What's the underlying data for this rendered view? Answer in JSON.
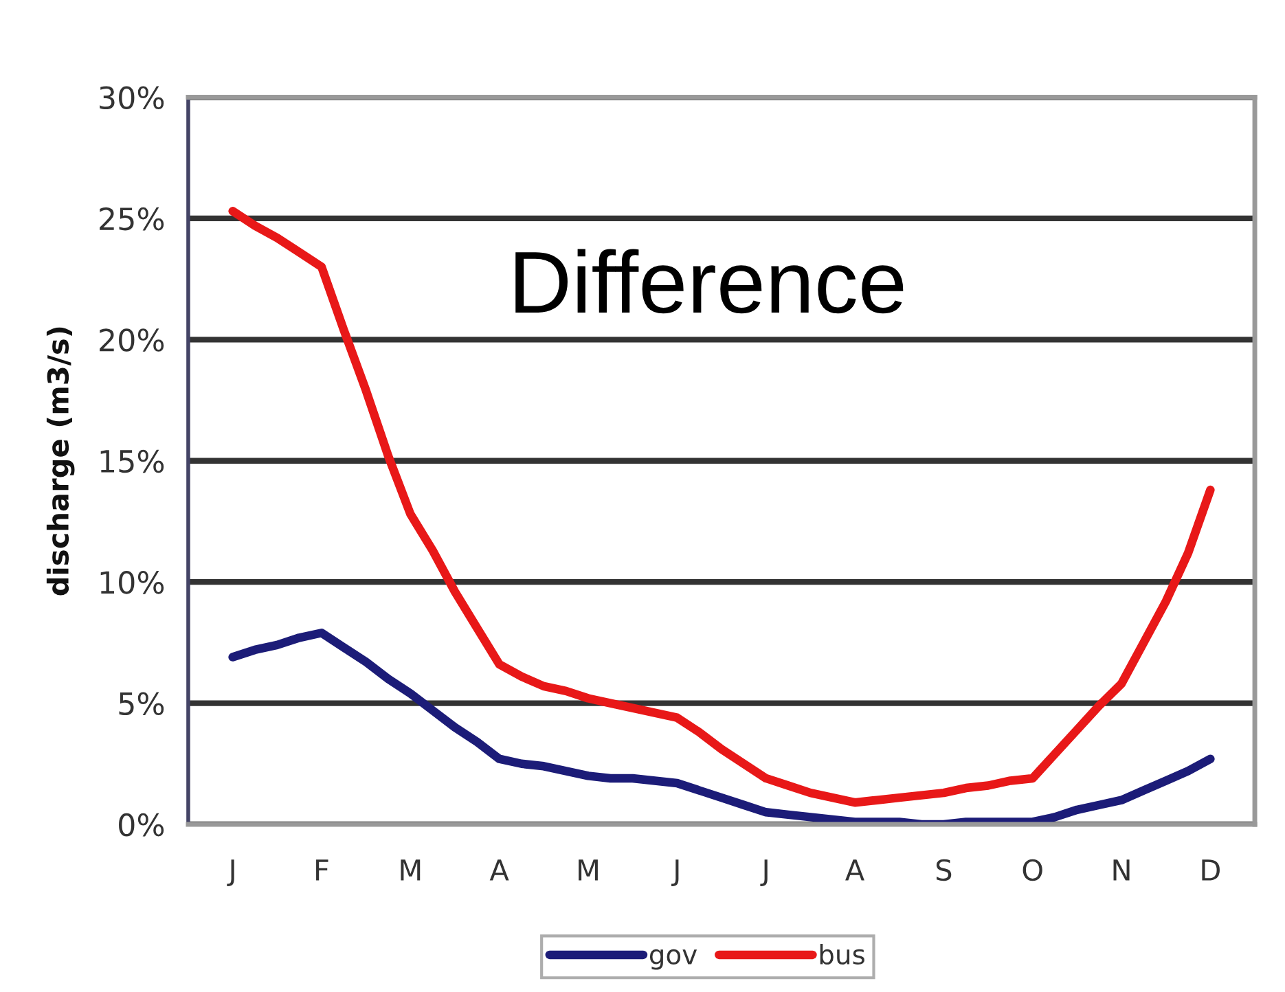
{
  "chart_data": {
    "type": "line",
    "title": "Difference",
    "ylabel": "discharge (m3/s)",
    "categories": [
      "J",
      null,
      null,
      null,
      "F",
      null,
      null,
      null,
      "M",
      null,
      null,
      null,
      "A",
      null,
      null,
      null,
      "M",
      null,
      null,
      null,
      "J",
      null,
      null,
      null,
      "J",
      null,
      null,
      null,
      "A",
      null,
      null,
      null,
      "S",
      null,
      null,
      null,
      "O",
      null,
      null,
      null,
      "N",
      null,
      null,
      null,
      "D"
    ],
    "ylim": [
      0,
      30
    ],
    "yticks": [
      {
        "value": 0,
        "label": "0%"
      },
      {
        "value": 5,
        "label": "5%"
      },
      {
        "value": 10,
        "label": "10%"
      },
      {
        "value": 15,
        "label": "15%"
      },
      {
        "value": 20,
        "label": "20%"
      },
      {
        "value": 25,
        "label": "25%"
      },
      {
        "value": 30,
        "label": "30%"
      }
    ],
    "grid": "y",
    "legend": "bottom",
    "marker": "none",
    "line_style": "solid",
    "series": [
      {
        "name": "gov",
        "color": "#1c1c78",
        "values": [
          6.9,
          7.2,
          7.4,
          7.7,
          7.9,
          7.3,
          6.7,
          6.0,
          5.4,
          4.7,
          4.0,
          3.4,
          2.7,
          2.5,
          2.4,
          2.2,
          2.0,
          1.9,
          1.9,
          1.8,
          1.7,
          1.4,
          1.1,
          0.8,
          0.5,
          0.4,
          0.3,
          0.2,
          0.1,
          0.1,
          0.1,
          0.0,
          0.0,
          0.1,
          0.1,
          0.1,
          0.1,
          0.3,
          0.6,
          0.8,
          1.0,
          1.4,
          1.8,
          2.2,
          2.7
        ]
      },
      {
        "name": "bus",
        "color": "#e81818",
        "values": [
          25.3,
          24.7,
          24.2,
          23.6,
          23.0,
          20.4,
          17.9,
          15.2,
          12.8,
          11.3,
          9.6,
          8.1,
          6.6,
          6.1,
          5.7,
          5.5,
          5.2,
          5.0,
          4.8,
          4.6,
          4.4,
          3.8,
          3.1,
          2.5,
          1.9,
          1.6,
          1.3,
          1.1,
          0.9,
          1.0,
          1.1,
          1.2,
          1.3,
          1.5,
          1.6,
          1.8,
          1.9,
          2.9,
          3.9,
          4.9,
          5.8,
          7.5,
          9.2,
          11.2,
          13.8
        ]
      }
    ]
  }
}
